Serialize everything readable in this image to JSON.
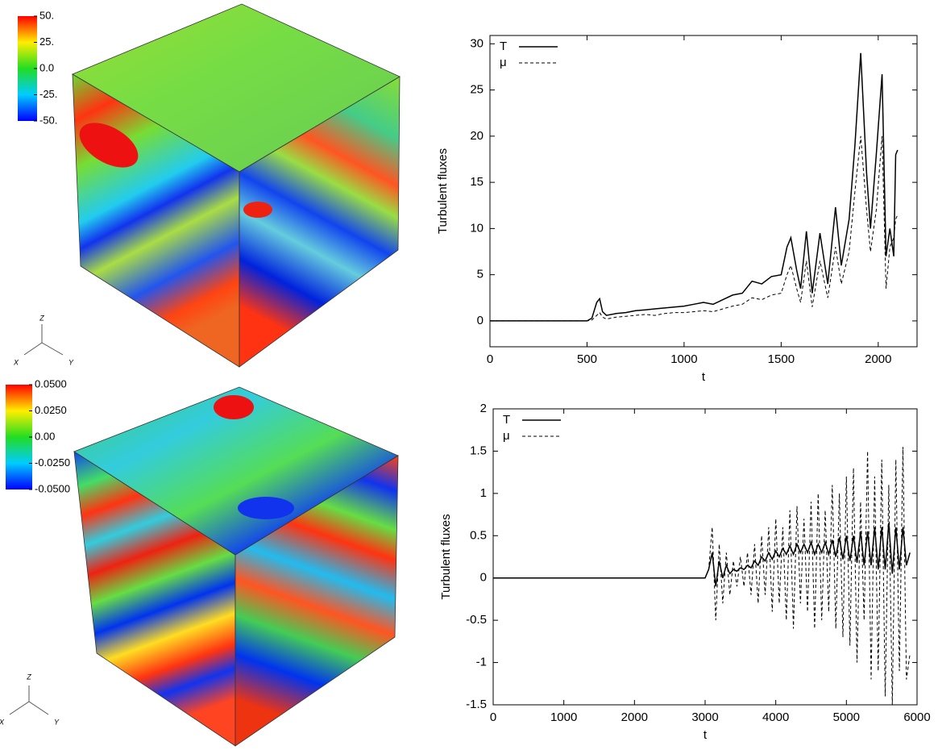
{
  "chart_data": [
    {
      "type": "line",
      "xlabel": "t",
      "ylabel": "Turbulent fluxes",
      "legend": "top-left",
      "xlim": [
        0,
        2200
      ],
      "ylim": [
        -2.8,
        30.9
      ],
      "xticks": [
        0,
        500,
        1000,
        1500,
        2000
      ],
      "yticks": [
        0,
        5,
        10,
        15,
        20,
        25,
        30
      ],
      "x": [
        0,
        100,
        200,
        300,
        400,
        500,
        525,
        550,
        565,
        580,
        600,
        650,
        700,
        750,
        800,
        850,
        900,
        950,
        1000,
        1050,
        1100,
        1150,
        1200,
        1250,
        1300,
        1350,
        1400,
        1450,
        1500,
        1530,
        1550,
        1580,
        1600,
        1630,
        1660,
        1700,
        1740,
        1780,
        1810,
        1850,
        1880,
        1910,
        1940,
        1960,
        1990,
        2020,
        2040,
        2060,
        2080,
        2090,
        2100
      ],
      "series": [
        {
          "name": "T",
          "color": "#000000",
          "style": "solid",
          "values": [
            0,
            0,
            0,
            0,
            0,
            0,
            0.3,
            2.0,
            2.4,
            1.0,
            0.6,
            0.8,
            0.9,
            1.1,
            1.2,
            1.3,
            1.4,
            1.5,
            1.6,
            1.8,
            2.0,
            1.8,
            2.3,
            2.8,
            3.0,
            4.3,
            4.0,
            4.8,
            5.0,
            8.0,
            9.0,
            5.5,
            3.5,
            9.7,
            3.0,
            9.5,
            4.0,
            12.3,
            6.0,
            11.0,
            19.0,
            29.0,
            16.0,
            10.0,
            18.0,
            26.7,
            7.0,
            10.0,
            7.0,
            18.0,
            18.5
          ]
        },
        {
          "name": "μ",
          "color": "#000000",
          "style": "dashed",
          "values": [
            0,
            0,
            0,
            0,
            0,
            0,
            0.1,
            0.6,
            0.9,
            0.4,
            0.2,
            0.4,
            0.5,
            0.6,
            0.7,
            0.6,
            0.8,
            0.9,
            0.9,
            1.0,
            1.1,
            1.0,
            1.3,
            1.6,
            1.8,
            2.5,
            2.3,
            2.8,
            3.0,
            5.0,
            6.0,
            3.5,
            2.0,
            6.5,
            1.5,
            6.5,
            2.5,
            8.0,
            4.0,
            7.5,
            14.0,
            20.0,
            12.0,
            7.5,
            12.0,
            20.0,
            3.5,
            8.0,
            9.0,
            11.0,
            11.5
          ]
        }
      ]
    },
    {
      "type": "line",
      "xlabel": "t",
      "ylabel": "Turbulent fluxes",
      "legend": "top-left",
      "xlim": [
        0,
        6000
      ],
      "ylim": [
        -1.5,
        2
      ],
      "xticks": [
        0,
        1000,
        2000,
        3000,
        4000,
        5000,
        6000
      ],
      "yticks": [
        -1.5,
        -1,
        -0.5,
        0,
        0.5,
        1,
        1.5,
        2
      ],
      "x": [
        0,
        500,
        1000,
        1500,
        2000,
        2500,
        2900,
        3000,
        3050,
        3100,
        3150,
        3200,
        3250,
        3300,
        3350,
        3400,
        3450,
        3500,
        3550,
        3600,
        3650,
        3700,
        3750,
        3800,
        3850,
        3900,
        3950,
        4000,
        4050,
        4100,
        4150,
        4200,
        4250,
        4300,
        4350,
        4400,
        4450,
        4500,
        4550,
        4600,
        4650,
        4700,
        4750,
        4800,
        4850,
        4900,
        4950,
        5000,
        5050,
        5100,
        5150,
        5200,
        5250,
        5300,
        5350,
        5400,
        5450,
        5500,
        5550,
        5600,
        5650,
        5700,
        5750,
        5800,
        5850,
        5900
      ],
      "series": [
        {
          "name": "T",
          "color": "#000000",
          "style": "solid",
          "values": [
            0,
            0,
            0,
            0,
            0,
            0,
            0,
            0,
            0.1,
            0.3,
            -0.1,
            0.2,
            0.0,
            0.15,
            0.05,
            0.1,
            0.08,
            0.12,
            0.1,
            0.15,
            0.12,
            0.2,
            0.15,
            0.25,
            0.2,
            0.3,
            0.22,
            0.32,
            0.25,
            0.35,
            0.28,
            0.38,
            0.28,
            0.4,
            0.3,
            0.4,
            0.3,
            0.42,
            0.28,
            0.4,
            0.3,
            0.42,
            0.28,
            0.45,
            0.25,
            0.48,
            0.22,
            0.5,
            0.2,
            0.5,
            0.18,
            0.55,
            0.15,
            0.55,
            0.15,
            0.6,
            0.1,
            0.6,
            0.1,
            0.65,
            0.05,
            0.6,
            0.1,
            0.6,
            0.15,
            0.3
          ]
        },
        {
          "name": "μ",
          "color": "#000000",
          "style": "dashed",
          "values": [
            0,
            0,
            0,
            0,
            0,
            0,
            0,
            0,
            0.1,
            0.6,
            -0.5,
            0.4,
            -0.3,
            0.3,
            -0.2,
            0.2,
            -0.1,
            0.25,
            -0.1,
            0.3,
            -0.2,
            0.4,
            -0.3,
            0.5,
            -0.2,
            0.6,
            -0.4,
            0.7,
            -0.3,
            0.6,
            -0.5,
            0.8,
            -0.6,
            0.85,
            -0.3,
            0.7,
            -0.4,
            0.9,
            -0.6,
            1.0,
            -0.5,
            0.8,
            -0.4,
            1.1,
            -0.6,
            1.0,
            -0.7,
            1.2,
            -0.8,
            1.3,
            -1.0,
            0.9,
            -0.5,
            1.5,
            -1.2,
            1.2,
            -1.1,
            1.4,
            -1.4,
            1.1,
            -1.5,
            1.4,
            -1.1,
            1.55,
            -1.2,
            -0.9
          ]
        }
      ]
    }
  ],
  "cubes": [
    {
      "colorbar": {
        "ticks": [
          {
            "value": 50,
            "label": "50."
          },
          {
            "value": 25,
            "label": "25."
          },
          {
            "value": 0,
            "label": "0.0"
          },
          {
            "value": -25,
            "label": "-25."
          },
          {
            "value": -50,
            "label": "-50."
          }
        ]
      },
      "axes": {
        "x": "X",
        "y": "Y",
        "z": "Z"
      }
    },
    {
      "colorbar": {
        "ticks": [
          {
            "value": 0.05,
            "label": "0.0500"
          },
          {
            "value": 0.025,
            "label": "0.0250"
          },
          {
            "value": 0,
            "label": "0.00"
          },
          {
            "value": -0.025,
            "label": "-0.0250"
          },
          {
            "value": -0.05,
            "label": "-0.0500"
          }
        ]
      },
      "axes": {
        "x": "X",
        "y": "Y",
        "z": "Z"
      }
    }
  ]
}
